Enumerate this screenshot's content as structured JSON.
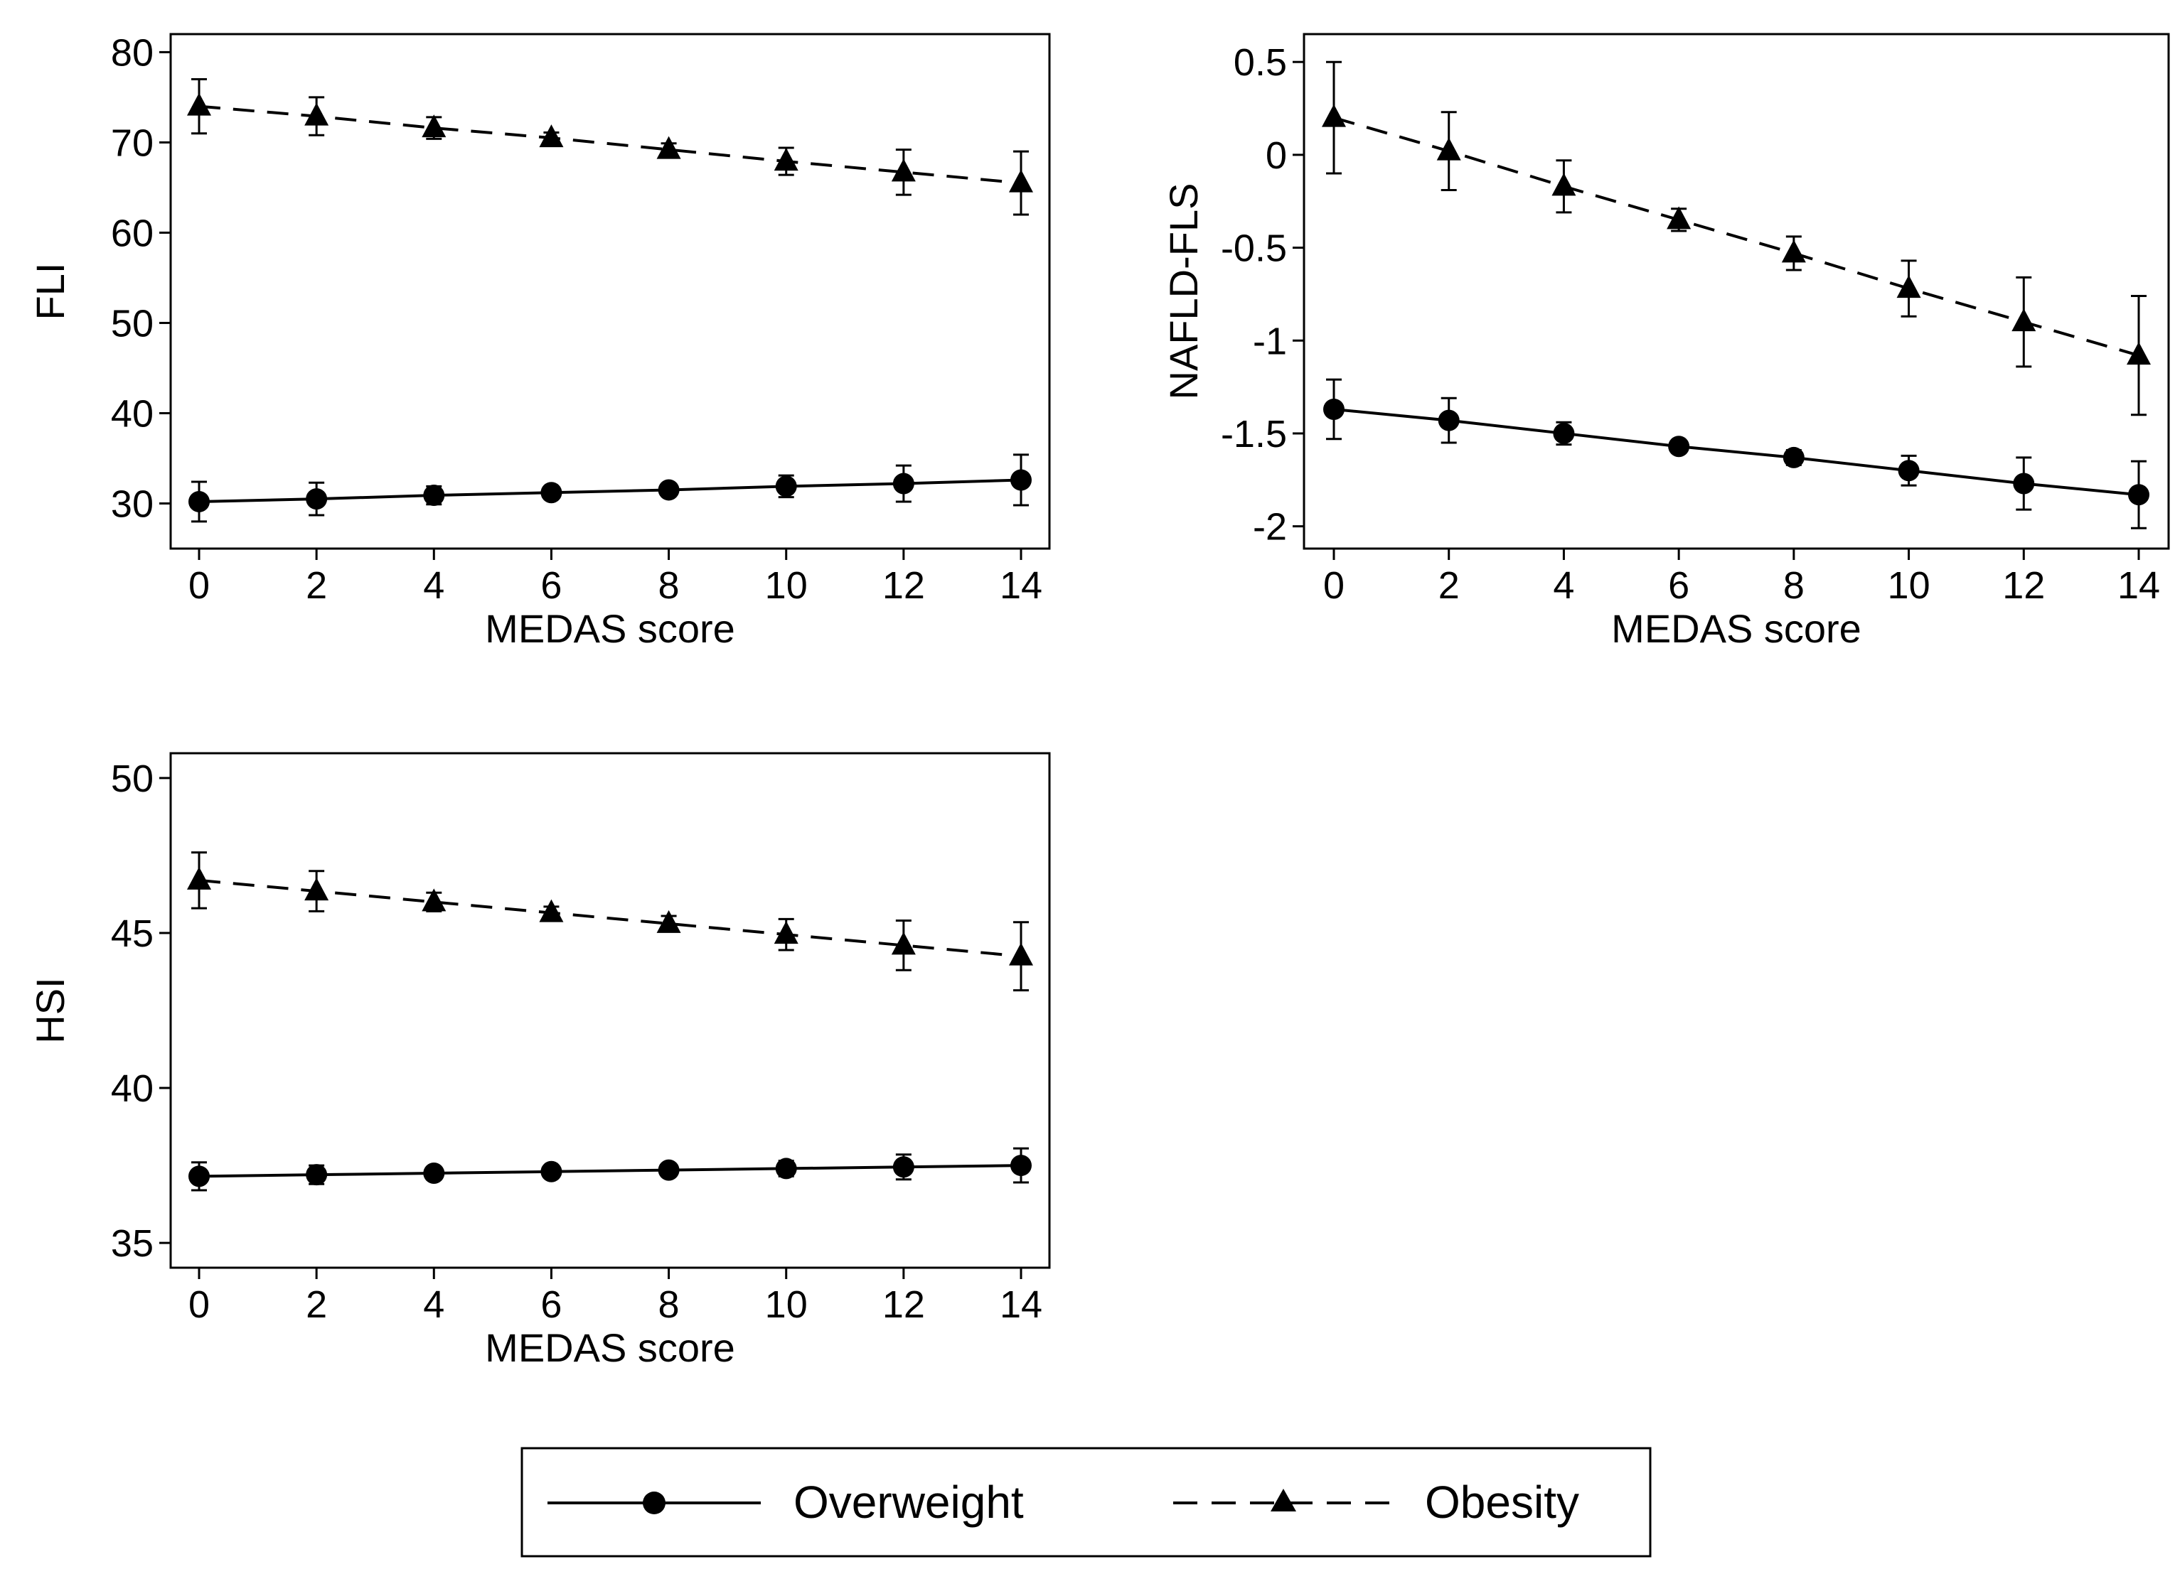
{
  "chart_data": [
    {
      "type": "line",
      "ylabel": "FLI",
      "xlabel": "MEDAS score",
      "xlim": [
        0,
        14
      ],
      "ylim": [
        25,
        82
      ],
      "x_ticks": [
        0,
        2,
        4,
        6,
        8,
        10,
        12,
        14
      ],
      "y_ticks": [
        30,
        40,
        50,
        60,
        70,
        80
      ],
      "y_tick_labels": [
        "30",
        "40",
        "50",
        "60",
        "70",
        "80"
      ],
      "series": [
        {
          "name": "Overweight",
          "marker": "circle",
          "line": "solid",
          "x": [
            0,
            2,
            4,
            6,
            8,
            10,
            12,
            14
          ],
          "values": [
            30.2,
            30.5,
            30.9,
            31.2,
            31.5,
            31.9,
            32.2,
            32.6
          ],
          "lower": [
            28.0,
            28.7,
            29.9,
            30.6,
            30.9,
            30.7,
            30.2,
            29.8
          ],
          "upper": [
            32.4,
            32.3,
            31.9,
            31.8,
            32.1,
            33.1,
            34.2,
            35.4
          ]
        },
        {
          "name": "Obesity",
          "marker": "triangle",
          "line": "dashed",
          "x": [
            0,
            2,
            4,
            6,
            8,
            10,
            12,
            14
          ],
          "values": [
            74.0,
            72.9,
            71.6,
            70.5,
            69.2,
            67.9,
            66.7,
            65.5
          ],
          "lower": [
            71.0,
            70.8,
            70.4,
            69.9,
            68.5,
            66.4,
            64.2,
            62.0
          ],
          "upper": [
            77.0,
            75.0,
            72.8,
            71.1,
            69.9,
            69.4,
            69.2,
            69.0
          ]
        }
      ]
    },
    {
      "type": "line",
      "ylabel": "NAFLD-FLS",
      "xlabel": "MEDAS score",
      "xlim": [
        0,
        14
      ],
      "ylim": [
        -2.12,
        0.65
      ],
      "x_ticks": [
        0,
        2,
        4,
        6,
        8,
        10,
        12,
        14
      ],
      "y_ticks": [
        -2,
        -1.5,
        -1,
        -0.5,
        0,
        0.5
      ],
      "y_tick_labels": [
        "-2",
        "-1.5",
        "-1",
        "-0.5",
        "0",
        "0.5"
      ],
      "series": [
        {
          "name": "Overweight",
          "marker": "circle",
          "line": "solid",
          "x": [
            0,
            2,
            4,
            6,
            8,
            10,
            12,
            14
          ],
          "values": [
            -1.37,
            -1.43,
            -1.5,
            -1.57,
            -1.63,
            -1.7,
            -1.77,
            -1.83
          ],
          "lower": [
            -1.53,
            -1.55,
            -1.56,
            -1.6,
            -1.67,
            -1.78,
            -1.91,
            -2.01
          ],
          "upper": [
            -1.21,
            -1.31,
            -1.44,
            -1.54,
            -1.59,
            -1.62,
            -1.63,
            -1.65
          ]
        },
        {
          "name": "Obesity",
          "marker": "triangle",
          "line": "dashed",
          "x": [
            0,
            2,
            4,
            6,
            8,
            10,
            12,
            14
          ],
          "values": [
            0.2,
            0.02,
            -0.17,
            -0.35,
            -0.53,
            -0.72,
            -0.9,
            -1.08
          ],
          "lower": [
            -0.1,
            -0.19,
            -0.31,
            -0.41,
            -0.62,
            -0.87,
            -1.14,
            -1.4
          ],
          "upper": [
            0.5,
            0.23,
            -0.03,
            -0.29,
            -0.44,
            -0.57,
            -0.66,
            -0.76
          ]
        }
      ]
    },
    {
      "type": "line",
      "ylabel": "HSI",
      "xlabel": "MEDAS score",
      "xlim": [
        0,
        14
      ],
      "ylim": [
        34.2,
        50.8
      ],
      "x_ticks": [
        0,
        2,
        4,
        6,
        8,
        10,
        12,
        14
      ],
      "y_ticks": [
        35,
        40,
        45,
        50
      ],
      "y_tick_labels": [
        "35",
        "40",
        "45",
        "50"
      ],
      "series": [
        {
          "name": "Overweight",
          "marker": "circle",
          "line": "solid",
          "x": [
            0,
            2,
            4,
            6,
            8,
            10,
            12,
            14
          ],
          "values": [
            37.15,
            37.2,
            37.25,
            37.3,
            37.35,
            37.4,
            37.45,
            37.5
          ],
          "lower": [
            36.7,
            36.9,
            37.1,
            37.2,
            37.2,
            37.15,
            37.05,
            36.95
          ],
          "upper": [
            37.6,
            37.5,
            37.4,
            37.4,
            37.5,
            37.65,
            37.85,
            38.05
          ]
        },
        {
          "name": "Obesity",
          "marker": "triangle",
          "line": "dashed",
          "x": [
            0,
            2,
            4,
            6,
            8,
            10,
            12,
            14
          ],
          "values": [
            46.7,
            46.35,
            46.0,
            45.65,
            45.3,
            44.95,
            44.6,
            44.25
          ],
          "lower": [
            45.8,
            45.7,
            45.7,
            45.45,
            45.05,
            44.45,
            43.8,
            43.15
          ],
          "upper": [
            47.6,
            47.0,
            46.3,
            45.85,
            45.55,
            45.45,
            45.4,
            45.35
          ]
        }
      ]
    }
  ],
  "legend": {
    "items": [
      {
        "label": "Overweight",
        "marker": "circle",
        "line": "solid"
      },
      {
        "label": "Obesity",
        "marker": "triangle",
        "line": "dashed"
      }
    ]
  }
}
